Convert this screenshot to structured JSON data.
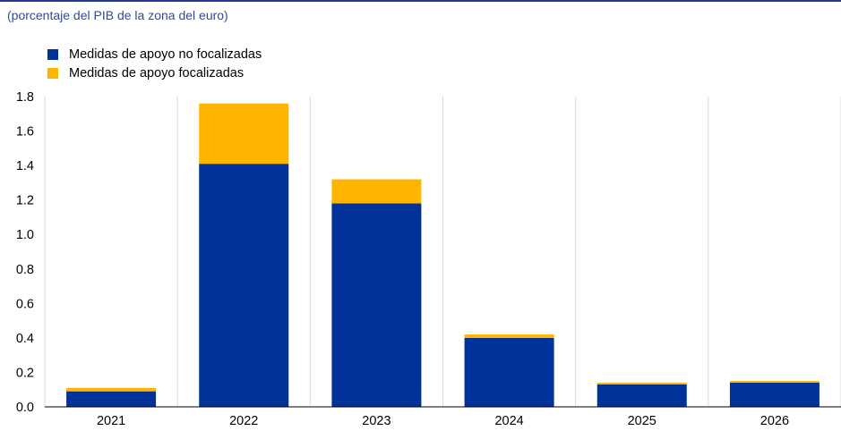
{
  "subtitle": "(porcentaje del PIB de la zona del euro)",
  "colors": {
    "non_targeted": "#003299",
    "targeted": "#FFB400",
    "grid": "#d9d9d9"
  },
  "chart_data": {
    "type": "bar",
    "stacked": true,
    "categories": [
      "2021",
      "2022",
      "2023",
      "2024",
      "2025",
      "2026"
    ],
    "series": [
      {
        "name": "Medidas de apoyo no focalizadas",
        "color": "#003299",
        "values": [
          0.09,
          1.41,
          1.18,
          0.4,
          0.13,
          0.14
        ]
      },
      {
        "name": "Medidas de apoyo focalizadas",
        "color": "#FFB400",
        "values": [
          0.02,
          0.35,
          0.14,
          0.02,
          0.01,
          0.01
        ]
      }
    ],
    "ylim": [
      0,
      1.8
    ],
    "yticks": [
      "0.0",
      "0.2",
      "0.4",
      "0.6",
      "0.8",
      "1.0",
      "1.2",
      "1.4",
      "1.6",
      "1.8"
    ],
    "grid": "vertical separators",
    "legend_position": "top-left"
  }
}
